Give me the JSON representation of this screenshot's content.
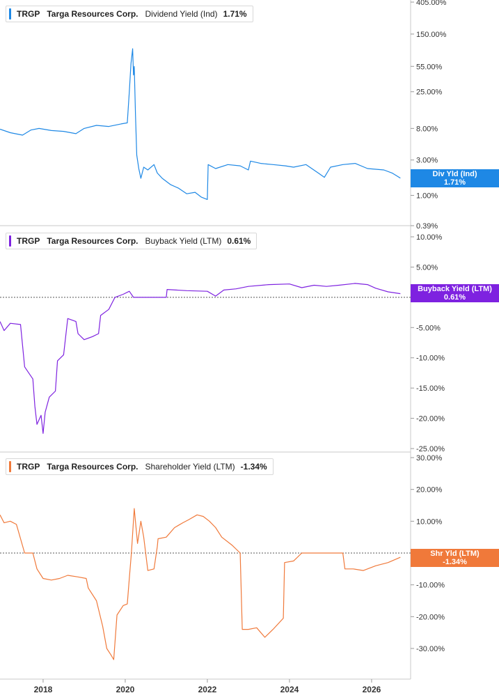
{
  "colors": {
    "dividend": "#1e88e5",
    "buyback": "#7e22e0",
    "shareholder": "#f0793a"
  },
  "chart_data": [
    {
      "type": "line",
      "legend": {
        "ticker": "TRGP",
        "company": "Targa Resources Corp.",
        "metric": "Dividend Yield (Ind)",
        "value": "1.71%"
      },
      "tag": {
        "label": "Div Yld (Ind)",
        "value": "1.71%"
      },
      "yscale": "log",
      "yticks": [
        {
          "v": 405,
          "label": "405.00%"
        },
        {
          "v": 150,
          "label": "150.00%"
        },
        {
          "v": 55,
          "label": "55.00%"
        },
        {
          "v": 25,
          "label": "25.00%"
        },
        {
          "v": 8,
          "label": "8.00%"
        },
        {
          "v": 3,
          "label": "3.00%"
        },
        {
          "v": 1,
          "label": "1.00%"
        },
        {
          "v": 0.39,
          "label": "0.39%"
        }
      ],
      "series": [
        {
          "points": [
            [
              2016.95,
              7.8
            ],
            [
              2017.2,
              7.0
            ],
            [
              2017.5,
              6.5
            ],
            [
              2017.7,
              7.6
            ],
            [
              2017.9,
              8.0
            ],
            [
              2018.2,
              7.5
            ],
            [
              2018.5,
              7.3
            ],
            [
              2018.8,
              6.8
            ],
            [
              2019.0,
              8.0
            ],
            [
              2019.3,
              8.8
            ],
            [
              2019.6,
              8.5
            ],
            [
              2019.9,
              9.2
            ],
            [
              2020.05,
              9.5
            ],
            [
              2020.1,
              25
            ],
            [
              2020.14,
              60
            ],
            [
              2020.18,
              95
            ],
            [
              2020.2,
              42
            ],
            [
              2020.22,
              55
            ],
            [
              2020.25,
              12
            ],
            [
              2020.28,
              3.5
            ],
            [
              2020.33,
              2.3
            ],
            [
              2020.38,
              1.7
            ],
            [
              2020.45,
              2.4
            ],
            [
              2020.55,
              2.2
            ],
            [
              2020.7,
              2.6
            ],
            [
              2020.78,
              2.0
            ],
            [
              2020.9,
              1.7
            ],
            [
              2021.1,
              1.4
            ],
            [
              2021.3,
              1.25
            ],
            [
              2021.5,
              1.05
            ],
            [
              2021.7,
              1.1
            ],
            [
              2021.85,
              0.95
            ],
            [
              2022.0,
              0.88
            ],
            [
              2022.02,
              2.6
            ],
            [
              2022.2,
              2.3
            ],
            [
              2022.5,
              2.6
            ],
            [
              2022.8,
              2.5
            ],
            [
              2023.0,
              2.2
            ],
            [
              2023.05,
              2.9
            ],
            [
              2023.3,
              2.7
            ],
            [
              2023.6,
              2.6
            ],
            [
              2023.9,
              2.5
            ],
            [
              2024.1,
              2.4
            ],
            [
              2024.4,
              2.6
            ],
            [
              2024.7,
              2.0
            ],
            [
              2024.85,
              1.75
            ],
            [
              2025.0,
              2.4
            ],
            [
              2025.3,
              2.6
            ],
            [
              2025.6,
              2.7
            ],
            [
              2025.9,
              2.3
            ],
            [
              2026.3,
              2.2
            ],
            [
              2026.5,
              2.0
            ],
            [
              2026.7,
              1.71
            ]
          ]
        }
      ]
    },
    {
      "type": "line",
      "legend": {
        "ticker": "TRGP",
        "company": "Targa Resources Corp.",
        "metric": "Buyback Yield (LTM)",
        "value": "0.61%"
      },
      "tag": {
        "label": "Buyback Yield (LTM)",
        "value": "0.61%"
      },
      "yscale": "linear",
      "yticks": [
        {
          "v": 10,
          "label": "10.00%"
        },
        {
          "v": 5,
          "label": "5.00%"
        },
        {
          "v": 0,
          "label": "0.00%"
        },
        {
          "v": -5,
          "label": "-5.00%"
        },
        {
          "v": -10,
          "label": "-10.00%"
        },
        {
          "v": -15,
          "label": "-15.00%"
        },
        {
          "v": -20,
          "label": "-20.00%"
        },
        {
          "v": -25,
          "label": "-25.00%"
        }
      ],
      "series": [
        {
          "points": [
            [
              2016.95,
              -4.0
            ],
            [
              2017.05,
              -5.5
            ],
            [
              2017.2,
              -4.3
            ],
            [
              2017.45,
              -4.5
            ],
            [
              2017.55,
              -11.5
            ],
            [
              2017.65,
              -12.5
            ],
            [
              2017.75,
              -13.5
            ],
            [
              2017.8,
              -18.0
            ],
            [
              2017.85,
              -21.0
            ],
            [
              2017.95,
              -19.5
            ],
            [
              2018.0,
              -22.5
            ],
            [
              2018.05,
              -19.0
            ],
            [
              2018.15,
              -16.5
            ],
            [
              2018.3,
              -15.5
            ],
            [
              2018.35,
              -10.5
            ],
            [
              2018.5,
              -9.5
            ],
            [
              2018.6,
              -3.5
            ],
            [
              2018.8,
              -4.0
            ],
            [
              2018.85,
              -6.0
            ],
            [
              2019.0,
              -7.0
            ],
            [
              2019.2,
              -6.5
            ],
            [
              2019.35,
              -6.0
            ],
            [
              2019.4,
              -3.0
            ],
            [
              2019.6,
              -2.0
            ],
            [
              2019.75,
              0.0
            ],
            [
              2019.95,
              0.5
            ],
            [
              2020.1,
              1.0
            ],
            [
              2020.2,
              0.0
            ],
            [
              2020.5,
              0.0
            ],
            [
              2020.8,
              0.0
            ],
            [
              2021.0,
              0.0
            ],
            [
              2021.02,
              1.3
            ],
            [
              2021.5,
              1.1
            ],
            [
              2022.0,
              1.0
            ],
            [
              2022.2,
              0.2
            ],
            [
              2022.4,
              1.2
            ],
            [
              2022.7,
              1.4
            ],
            [
              2023.0,
              1.8
            ],
            [
              2023.5,
              2.1
            ],
            [
              2024.0,
              2.2
            ],
            [
              2024.3,
              1.6
            ],
            [
              2024.6,
              2.0
            ],
            [
              2024.9,
              1.8
            ],
            [
              2025.2,
              2.0
            ],
            [
              2025.6,
              2.3
            ],
            [
              2025.9,
              2.1
            ],
            [
              2026.1,
              1.5
            ],
            [
              2026.4,
              0.9
            ],
            [
              2026.7,
              0.61
            ]
          ]
        }
      ]
    },
    {
      "type": "line",
      "legend": {
        "ticker": "TRGP",
        "company": "Targa Resources Corp.",
        "metric": "Shareholder Yield (LTM)",
        "value": "-1.34%"
      },
      "tag": {
        "label": "Shr Yld (LTM)",
        "value": "-1.34%"
      },
      "yscale": "linear",
      "yticks": [
        {
          "v": 30,
          "label": "30.00%"
        },
        {
          "v": 20,
          "label": "20.00%"
        },
        {
          "v": 10,
          "label": "10.00%"
        },
        {
          "v": 0,
          "label": "0.00%"
        },
        {
          "v": -10,
          "label": "-10.00%"
        },
        {
          "v": -20,
          "label": "-20.00%"
        },
        {
          "v": -30,
          "label": "-30.00%"
        }
      ],
      "series": [
        {
          "points": [
            [
              2016.95,
              12.0
            ],
            [
              2017.05,
              9.5
            ],
            [
              2017.2,
              10.0
            ],
            [
              2017.35,
              9.0
            ],
            [
              2017.55,
              0.0
            ],
            [
              2017.75,
              0.0
            ],
            [
              2017.85,
              -5.0
            ],
            [
              2018.0,
              -8.0
            ],
            [
              2018.2,
              -8.5
            ],
            [
              2018.4,
              -8.0
            ],
            [
              2018.6,
              -7.0
            ],
            [
              2018.85,
              -7.5
            ],
            [
              2019.05,
              -8.0
            ],
            [
              2019.1,
              -11.0
            ],
            [
              2019.3,
              -15.0
            ],
            [
              2019.45,
              -23.0
            ],
            [
              2019.55,
              -30.0
            ],
            [
              2019.65,
              -32.0
            ],
            [
              2019.72,
              -33.5
            ],
            [
              2019.8,
              -19.5
            ],
            [
              2019.95,
              -16.5
            ],
            [
              2020.05,
              -16.0
            ],
            [
              2020.1,
              -8.0
            ],
            [
              2020.15,
              0.0
            ],
            [
              2020.22,
              14.0
            ],
            [
              2020.3,
              3.0
            ],
            [
              2020.38,
              10.0
            ],
            [
              2020.45,
              5.0
            ],
            [
              2020.55,
              -5.5
            ],
            [
              2020.7,
              -5.0
            ],
            [
              2020.78,
              2.0
            ],
            [
              2020.8,
              4.5
            ],
            [
              2021.0,
              5.0
            ],
            [
              2021.2,
              8.0
            ],
            [
              2021.4,
              9.5
            ],
            [
              2021.55,
              10.5
            ],
            [
              2021.75,
              12.0
            ],
            [
              2021.9,
              11.5
            ],
            [
              2022.05,
              10.0
            ],
            [
              2022.2,
              8.0
            ],
            [
              2022.35,
              5.0
            ],
            [
              2022.6,
              2.5
            ],
            [
              2022.8,
              0.0
            ],
            [
              2022.85,
              -24.0
            ],
            [
              2023.0,
              -24.0
            ],
            [
              2023.2,
              -23.5
            ],
            [
              2023.4,
              -26.5
            ],
            [
              2023.6,
              -24.0
            ],
            [
              2023.85,
              -20.5
            ],
            [
              2023.88,
              -3.0
            ],
            [
              2024.1,
              -2.5
            ],
            [
              2024.3,
              0.0
            ],
            [
              2024.7,
              0.0
            ],
            [
              2025.0,
              0.0
            ],
            [
              2025.3,
              0.0
            ],
            [
              2025.35,
              -5.0
            ],
            [
              2025.55,
              -5.0
            ],
            [
              2025.8,
              -5.5
            ],
            [
              2026.1,
              -4.0
            ],
            [
              2026.4,
              -3.0
            ],
            [
              2026.7,
              -1.34
            ]
          ]
        }
      ]
    }
  ],
  "xaxis": {
    "range": [
      2016.95,
      2026.95
    ],
    "ticks": [
      {
        "v": 2018,
        "label": "2018"
      },
      {
        "v": 2020,
        "label": "2020"
      },
      {
        "v": 2022,
        "label": "2022"
      },
      {
        "v": 2024,
        "label": "2024"
      },
      {
        "v": 2026,
        "label": "2026"
      }
    ]
  }
}
